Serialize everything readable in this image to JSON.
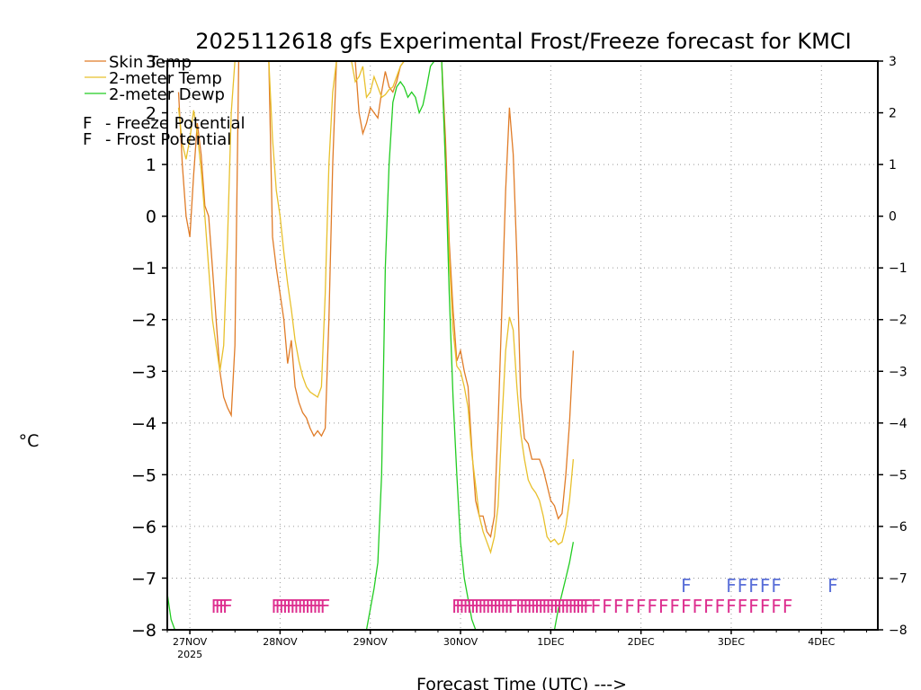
{
  "chart_data": {
    "type": "line",
    "title": "2025112618 gfs Experimental Frost/Freeze forecast for KMCI",
    "ylabel": "°C",
    "xlabel": "Forecast Time (UTC) --->",
    "ylim": [
      -8,
      3
    ],
    "xlim": [
      0,
      189
    ],
    "yticks": [
      -8,
      -7,
      -6,
      -5,
      -4,
      -3,
      -2,
      -1,
      0,
      1,
      2,
      3
    ],
    "ytick_labels": [
      "−8",
      "−7",
      "−6",
      "−5",
      "−4",
      "−3",
      "−2",
      "−1",
      "0",
      "1",
      "2",
      "3"
    ],
    "x_unit": "hours after 2025-11-26 18Z",
    "date_ticks": [
      {
        "x": 6,
        "label": "27NOV",
        "sub": "2025"
      },
      {
        "x": 30,
        "label": "28NOV"
      },
      {
        "x": 54,
        "label": "29NOV"
      },
      {
        "x": 78,
        "label": "30NOV"
      },
      {
        "x": 102,
        "label": "1DEC"
      },
      {
        "x": 126,
        "label": "2DEC"
      },
      {
        "x": 150,
        "label": "3DEC"
      },
      {
        "x": 174,
        "label": "4DEC"
      }
    ],
    "series": [
      {
        "name": "Skin Temp",
        "color": "#e07c28",
        "points": [
          [
            3,
            2.4
          ],
          [
            4,
            1
          ],
          [
            5,
            0
          ],
          [
            6,
            -0.4
          ],
          [
            7,
            0.8
          ],
          [
            8,
            1.8
          ],
          [
            9,
            1.2
          ],
          [
            10,
            0.2
          ],
          [
            11,
            0
          ],
          [
            12,
            -1
          ],
          [
            13,
            -2
          ],
          [
            14,
            -3
          ],
          [
            15,
            -3.5
          ],
          [
            16,
            -3.7
          ],
          [
            17,
            -3.85
          ],
          [
            18,
            -2.5
          ],
          [
            19,
            3.2
          ],
          [
            27,
            3.2
          ],
          [
            28,
            -0.4
          ],
          [
            29,
            -1
          ],
          [
            30,
            -1.5
          ],
          [
            31,
            -2
          ],
          [
            32,
            -2.85
          ],
          [
            33,
            -2.4
          ],
          [
            34,
            -3.3
          ],
          [
            35,
            -3.6
          ],
          [
            36,
            -3.8
          ],
          [
            37,
            -3.9
          ],
          [
            38,
            -4.1
          ],
          [
            39,
            -4.25
          ],
          [
            40,
            -4.15
          ],
          [
            41,
            -4.25
          ],
          [
            42,
            -4.1
          ],
          [
            43,
            -2
          ],
          [
            44,
            1
          ],
          [
            45,
            3.2
          ],
          [
            50,
            3.2
          ],
          [
            51,
            2
          ],
          [
            52,
            1.6
          ],
          [
            53,
            1.8
          ],
          [
            54,
            2.1
          ],
          [
            55,
            2
          ],
          [
            56,
            1.9
          ],
          [
            57,
            2.4
          ],
          [
            58,
            2.8
          ],
          [
            59,
            2.5
          ],
          [
            60,
            2.4
          ],
          [
            61,
            2.6
          ],
          [
            62,
            2.9
          ],
          [
            63,
            3
          ],
          [
            64,
            3.2
          ],
          [
            73,
            3.2
          ],
          [
            74,
            1.5
          ],
          [
            75,
            -0.5
          ],
          [
            76,
            -1.8
          ],
          [
            77,
            -2.8
          ],
          [
            78,
            -2.6
          ],
          [
            79,
            -3
          ],
          [
            80,
            -3.3
          ],
          [
            81,
            -4.5
          ],
          [
            82,
            -5.5
          ],
          [
            83,
            -5.8
          ],
          [
            84,
            -5.8
          ],
          [
            85,
            -6.1
          ],
          [
            86,
            -6.2
          ],
          [
            87,
            -5.8
          ],
          [
            88,
            -4
          ],
          [
            89,
            -1.8
          ],
          [
            90,
            0.5
          ],
          [
            91,
            2.1
          ],
          [
            92,
            1.2
          ],
          [
            93,
            -0.8
          ],
          [
            94,
            -3.5
          ],
          [
            95,
            -4.3
          ],
          [
            96,
            -4.4
          ],
          [
            97,
            -4.7
          ],
          [
            98,
            -4.7
          ],
          [
            99,
            -4.7
          ],
          [
            100,
            -4.9
          ],
          [
            101,
            -5.2
          ],
          [
            102,
            -5.5
          ],
          [
            103,
            -5.6
          ],
          [
            104,
            -5.85
          ],
          [
            105,
            -5.75
          ],
          [
            106,
            -5
          ],
          [
            107,
            -4
          ],
          [
            108,
            -2.6
          ]
        ]
      },
      {
        "name": "2-meter Temp",
        "color": "#e8c02c",
        "points": [
          [
            3,
            2.1
          ],
          [
            4,
            1.4
          ],
          [
            5,
            1.1
          ],
          [
            6,
            1.5
          ],
          [
            7,
            2.05
          ],
          [
            8,
            1.6
          ],
          [
            9,
            0.9
          ],
          [
            10,
            0
          ],
          [
            11,
            -1
          ],
          [
            12,
            -2
          ],
          [
            13,
            -2.5
          ],
          [
            14,
            -3
          ],
          [
            15,
            -2.5
          ],
          [
            16,
            -0.5
          ],
          [
            17,
            2
          ],
          [
            18,
            3.2
          ],
          [
            27,
            3.2
          ],
          [
            28,
            1.5
          ],
          [
            29,
            0.5
          ],
          [
            30,
            0
          ],
          [
            31,
            -0.7
          ],
          [
            32,
            -1.3
          ],
          [
            33,
            -1.8
          ],
          [
            34,
            -2.4
          ],
          [
            35,
            -2.8
          ],
          [
            36,
            -3.1
          ],
          [
            37,
            -3.3
          ],
          [
            38,
            -3.4
          ],
          [
            39,
            -3.45
          ],
          [
            40,
            -3.5
          ],
          [
            41,
            -3.3
          ],
          [
            42,
            -1.5
          ],
          [
            43,
            1
          ],
          [
            44,
            2.4
          ],
          [
            45,
            3.2
          ],
          [
            49,
            3.2
          ],
          [
            50,
            2.6
          ],
          [
            51,
            2.7
          ],
          [
            52,
            2.9
          ],
          [
            53,
            2.3
          ],
          [
            54,
            2.4
          ],
          [
            55,
            2.7
          ],
          [
            56,
            2.5
          ],
          [
            57,
            2.3
          ],
          [
            58,
            2.35
          ],
          [
            59,
            2.45
          ],
          [
            60,
            2.5
          ],
          [
            61,
            2.7
          ],
          [
            62,
            2.9
          ],
          [
            63,
            3.1
          ],
          [
            64,
            3.2
          ],
          [
            73,
            3.2
          ],
          [
            74,
            1
          ],
          [
            75,
            -0.8
          ],
          [
            76,
            -2.2
          ],
          [
            77,
            -2.9
          ],
          [
            78,
            -3
          ],
          [
            79,
            -3.3
          ],
          [
            80,
            -3.7
          ],
          [
            81,
            -4.6
          ],
          [
            82,
            -5.2
          ],
          [
            83,
            -5.8
          ],
          [
            84,
            -6.1
          ],
          [
            85,
            -6.3
          ],
          [
            86,
            -6.5
          ],
          [
            87,
            -6.2
          ],
          [
            88,
            -5.6
          ],
          [
            89,
            -4
          ],
          [
            90,
            -2.6
          ],
          [
            91,
            -1.95
          ],
          [
            92,
            -2.2
          ],
          [
            93,
            -3.3
          ],
          [
            94,
            -4.2
          ],
          [
            95,
            -4.7
          ],
          [
            96,
            -5.1
          ],
          [
            97,
            -5.25
          ],
          [
            98,
            -5.35
          ],
          [
            99,
            -5.5
          ],
          [
            100,
            -5.8
          ],
          [
            101,
            -6.2
          ],
          [
            102,
            -6.3
          ],
          [
            103,
            -6.25
          ],
          [
            104,
            -6.35
          ],
          [
            105,
            -6.3
          ],
          [
            106,
            -6
          ],
          [
            107,
            -5.5
          ],
          [
            108,
            -4.7
          ]
        ]
      },
      {
        "name": "2-meter Dewp",
        "color": "#22cc22",
        "points": [
          [
            0,
            -7.3
          ],
          [
            1,
            -7.8
          ],
          [
            2,
            -8.1
          ]
        ],
        "segments": [
          [
            [
              53,
              -8.1
            ],
            [
              54,
              -7.6
            ],
            [
              55,
              -7.2
            ],
            [
              56,
              -6.7
            ],
            [
              57,
              -5
            ],
            [
              58,
              -1
            ],
            [
              59,
              1
            ],
            [
              60,
              2.2
            ],
            [
              61,
              2.5
            ],
            [
              62,
              2.6
            ],
            [
              63,
              2.5
            ],
            [
              64,
              2.3
            ],
            [
              65,
              2.4
            ],
            [
              66,
              2.3
            ],
            [
              67,
              2.0
            ],
            [
              68,
              2.15
            ],
            [
              69,
              2.5
            ],
            [
              70,
              2.9
            ],
            [
              71,
              3.2
            ]
          ],
          [
            [
              73,
              3.2
            ],
            [
              74,
              1
            ],
            [
              75,
              -1.5
            ],
            [
              76,
              -3.5
            ],
            [
              77,
              -5
            ],
            [
              78,
              -6.3
            ],
            [
              79,
              -7
            ],
            [
              80,
              -7.4
            ],
            [
              81,
              -7.8
            ],
            [
              82,
              -8.1
            ]
          ],
          [
            [
              103,
              -8.1
            ],
            [
              104,
              -7.6
            ],
            [
              105,
              -7.3
            ],
            [
              106,
              -7.0
            ],
            [
              107,
              -6.7
            ],
            [
              108,
              -6.3
            ]
          ]
        ]
      }
    ],
    "legend": [
      {
        "label": "Skin Temp",
        "color": "#e07c28",
        "style": "line"
      },
      {
        "label": "2-meter Temp",
        "color": "#e8c02c",
        "style": "line"
      },
      {
        "label": "2-meter Dewp",
        "color": "#22cc22",
        "style": "line"
      },
      {
        "letter": "F",
        "label": "- Freeze Potential",
        "color": "#dd2f8f",
        "style": "text"
      },
      {
        "letter": "F",
        "label": "- Frost Potential",
        "color": "#5a6fd8",
        "style": "text"
      }
    ],
    "freeze_markers": {
      "color": "#dd2f8f",
      "y": -7.55,
      "letter": "F",
      "hours": [
        13,
        14,
        15,
        16,
        29,
        30,
        31,
        32,
        33,
        34,
        35,
        36,
        37,
        38,
        39,
        40,
        41,
        42,
        77,
        78,
        79,
        80,
        81,
        82,
        83,
        84,
        85,
        86,
        87,
        88,
        89,
        90,
        91,
        92,
        94,
        95,
        96,
        97,
        98,
        99,
        100,
        101,
        102,
        103,
        104,
        105,
        106,
        107,
        108,
        109,
        110,
        111,
        112,
        114,
        117,
        120,
        123,
        126,
        129,
        132,
        135,
        138,
        141,
        144,
        147,
        150,
        153,
        156,
        159,
        162,
        165
      ]
    },
    "frost_markers": {
      "color": "#5a6fd8",
      "y": -7.15,
      "letter": "F",
      "hours": [
        138,
        150,
        153,
        156,
        159,
        162,
        177
      ]
    }
  }
}
